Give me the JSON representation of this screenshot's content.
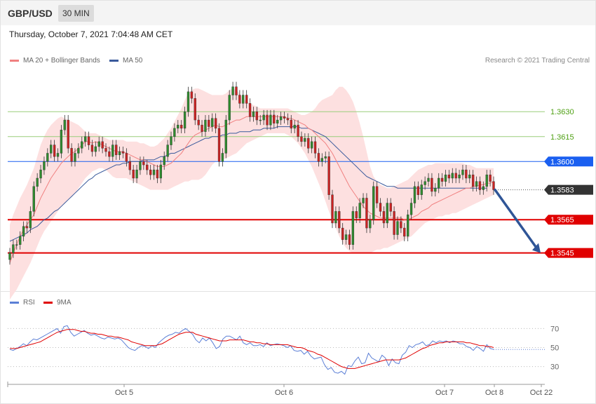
{
  "header": {
    "symbol": "GBP/USD",
    "interval": "30 MIN"
  },
  "timestamp": "Thursday, October 7, 2021 7:04:48 AM CET",
  "legend": {
    "ma20_bb": {
      "label": "MA 20 + Bollinger Bands",
      "color": "#f08080"
    },
    "ma50": {
      "label": "MA 50",
      "color": "#3a5a9c"
    }
  },
  "copyright": "Research © 2021 Trading Central",
  "rsi_legend": {
    "rsi": {
      "label": "RSI",
      "color": "#5b7fd6"
    },
    "ma9": {
      "label": "9MA",
      "color": "#e00000"
    }
  },
  "colors": {
    "up": "#2e8b2e",
    "down": "#cc2222",
    "bands": "#fde0e0",
    "ma20": "#f08080",
    "ma50": "#3a5a9c"
  },
  "chart_data": [
    {
      "type": "candlestick",
      "title": "",
      "ylim": [
        1.3525,
        1.3655
      ],
      "levels": [
        {
          "value": 1.363,
          "label": "1.3630",
          "kind": "target",
          "color": "#9acd7a"
        },
        {
          "value": 1.3615,
          "label": "1.3615",
          "kind": "target",
          "color": "#9acd7a"
        },
        {
          "value": 1.36,
          "label": "1.3600",
          "kind": "pivot",
          "color": "#1a5ff0"
        },
        {
          "value": 1.3583,
          "label": "1.3583",
          "kind": "last",
          "color": "#333333"
        },
        {
          "value": 1.3565,
          "label": "1.3565",
          "kind": "support",
          "color": "#e00000"
        },
        {
          "value": 1.3545,
          "label": "1.3545",
          "kind": "support",
          "color": "#e00000"
        }
      ],
      "forecast_arrow": {
        "from": 1.3583,
        "to": 1.3545,
        "color": "#2f5597"
      },
      "close": [
        1.3545,
        1.355,
        1.355,
        1.3555,
        1.3561,
        1.356,
        1.357,
        1.3585,
        1.359,
        1.3595,
        1.36,
        1.3605,
        1.361,
        1.3603,
        1.3605,
        1.3619,
        1.3625,
        1.3608,
        1.36,
        1.3605,
        1.3608,
        1.3612,
        1.3615,
        1.361,
        1.3606,
        1.3609,
        1.3612,
        1.3608,
        1.3606,
        1.3603,
        1.361,
        1.3604,
        1.3606,
        1.3605,
        1.36,
        1.3595,
        1.359,
        1.3595,
        1.36,
        1.3598,
        1.3595,
        1.3592,
        1.3595,
        1.359,
        1.3598,
        1.3603,
        1.361,
        1.3615,
        1.362,
        1.3622,
        1.362,
        1.363,
        1.3642,
        1.3638,
        1.3625,
        1.3622,
        1.3618,
        1.3625,
        1.3621,
        1.3626,
        1.362,
        1.36,
        1.3605,
        1.3625,
        1.364,
        1.3645,
        1.364,
        1.3635,
        1.364,
        1.3635,
        1.3627,
        1.363,
        1.3625,
        1.3625,
        1.3628,
        1.3622,
        1.3628,
        1.3623,
        1.3625,
        1.3627,
        1.3626,
        1.3625,
        1.362,
        1.3622,
        1.3615,
        1.3612,
        1.3614,
        1.3608,
        1.3612,
        1.3605,
        1.36,
        1.3602,
        1.3603,
        1.358,
        1.3563,
        1.357,
        1.356,
        1.3553,
        1.3556,
        1.355,
        1.357,
        1.3566,
        1.3575,
        1.3578,
        1.356,
        1.3565,
        1.3585,
        1.3575,
        1.357,
        1.3563,
        1.3575,
        1.357,
        1.3556,
        1.3564,
        1.356,
        1.3555,
        1.3568,
        1.3575,
        1.3585,
        1.358,
        1.3586,
        1.3588,
        1.359,
        1.3582,
        1.3584,
        1.359,
        1.3588,
        1.3592,
        1.359,
        1.3593,
        1.359,
        1.3592,
        1.3595,
        1.359,
        1.3592,
        1.3585,
        1.3588,
        1.3583,
        1.3585,
        1.3592,
        1.3588,
        1.3583
      ],
      "ma20": [
        1.3539,
        1.3545,
        1.355,
        1.3555,
        1.3559,
        1.3562,
        1.3565,
        1.3568,
        1.3573,
        1.3578,
        1.3582,
        1.3586,
        1.359,
        1.3593,
        1.3596,
        1.3599,
        1.3601,
        1.3603,
        1.3605,
        1.3606,
        1.3608,
        1.361,
        1.3612,
        1.3612,
        1.3611,
        1.3612,
        1.3611,
        1.361,
        1.3609,
        1.3608,
        1.3607,
        1.3606,
        1.3606,
        1.3606,
        1.3605,
        1.3604,
        1.3603,
        1.3602,
        1.3601,
        1.3601,
        1.36,
        1.3599,
        1.3598,
        1.3597,
        1.3597,
        1.3597,
        1.3598,
        1.3599,
        1.3601,
        1.3603,
        1.3605,
        1.3608,
        1.3611,
        1.3614,
        1.3616,
        1.3617,
        1.3618,
        1.3619,
        1.362,
        1.3621,
        1.3622,
        1.3621,
        1.3621,
        1.3622,
        1.3623,
        1.3624,
        1.3625,
        1.3625,
        1.3626,
        1.3627,
        1.3627,
        1.3627,
        1.3627,
        1.3627,
        1.3627,
        1.3627,
        1.3627,
        1.3627,
        1.3627,
        1.3627,
        1.3627,
        1.3626,
        1.3626,
        1.3625,
        1.3624,
        1.3623,
        1.3622,
        1.362,
        1.3619,
        1.3617,
        1.3615,
        1.3613,
        1.3611,
        1.3608,
        1.3605,
        1.3601,
        1.3597,
        1.3593,
        1.3589,
        1.3585,
        1.3582,
        1.3579,
        1.3576,
        1.3573,
        1.3571,
        1.3569,
        1.3568,
        1.3567,
        1.3566,
        1.3566,
        1.3566,
        1.3566,
        1.3566,
        1.3566,
        1.3566,
        1.3565,
        1.3565,
        1.3566,
        1.3567,
        1.3568,
        1.357,
        1.3571,
        1.3572,
        1.3574,
        1.3575,
        1.3576,
        1.3577,
        1.3578,
        1.3579,
        1.358,
        1.3581,
        1.3582,
        1.3583,
        1.3584,
        1.3584,
        1.3585,
        1.3585,
        1.3586,
        1.3586,
        1.3587,
        1.3587,
        1.3588
      ],
      "bb_upper": [
        1.3562,
        1.3568,
        1.3573,
        1.3578,
        1.3582,
        1.3586,
        1.3591,
        1.3596,
        1.3603,
        1.361,
        1.3615,
        1.3619,
        1.3622,
        1.3624,
        1.3626,
        1.3627,
        1.3626,
        1.3625,
        1.3624,
        1.3623,
        1.3622,
        1.362,
        1.3618,
        1.3617,
        1.3617,
        1.3617,
        1.3616,
        1.3615,
        1.3614,
        1.3613,
        1.3613,
        1.3613,
        1.3613,
        1.3613,
        1.3612,
        1.3612,
        1.3612,
        1.3612,
        1.3611,
        1.3611,
        1.361,
        1.3609,
        1.3609,
        1.361,
        1.3612,
        1.3614,
        1.3617,
        1.362,
        1.3624,
        1.3628,
        1.3632,
        1.3637,
        1.3641,
        1.3643,
        1.3644,
        1.3644,
        1.3643,
        1.3642,
        1.3641,
        1.364,
        1.364,
        1.364,
        1.364,
        1.3641,
        1.3643,
        1.3644,
        1.3643,
        1.3641,
        1.3638,
        1.3636,
        1.3635,
        1.3634,
        1.3633,
        1.3632,
        1.3632,
        1.3632,
        1.3632,
        1.3632,
        1.3632,
        1.3632,
        1.3632,
        1.3632,
        1.3631,
        1.363,
        1.3629,
        1.3628,
        1.3628,
        1.3629,
        1.363,
        1.3632,
        1.3635,
        1.3637,
        1.3638,
        1.3639,
        1.364,
        1.3643,
        1.3645,
        1.3645,
        1.3643,
        1.364,
        1.3636,
        1.363,
        1.3623,
        1.3615,
        1.3606,
        1.3597,
        1.3591,
        1.3588,
        1.3586,
        1.3585,
        1.3584,
        1.3584,
        1.3585,
        1.3586,
        1.3587,
        1.3588,
        1.3589,
        1.3591,
        1.3593,
        1.3595,
        1.3596,
        1.3597,
        1.3598,
        1.3598,
        1.3599,
        1.3599,
        1.3599,
        1.3599,
        1.3599,
        1.3599,
        1.3599,
        1.3599,
        1.3599,
        1.3598,
        1.3598,
        1.3597,
        1.3596,
        1.3596,
        1.3596,
        1.3596,
        1.3596,
        1.3596
      ],
      "bb_lower": [
        1.3517,
        1.352,
        1.3523,
        1.3527,
        1.3531,
        1.3535,
        1.3539,
        1.3544,
        1.3549,
        1.3554,
        1.3558,
        1.3561,
        1.3564,
        1.3567,
        1.357,
        1.3573,
        1.3575,
        1.3577,
        1.3579,
        1.3581,
        1.3584,
        1.3587,
        1.359,
        1.3592,
        1.3594,
        1.3595,
        1.3596,
        1.3596,
        1.3595,
        1.3593,
        1.3591,
        1.359,
        1.359,
        1.359,
        1.359,
        1.3589,
        1.3588,
        1.3587,
        1.3586,
        1.3585,
        1.3584,
        1.3583,
        1.3583,
        1.3583,
        1.3583,
        1.3583,
        1.3583,
        1.3584,
        1.3585,
        1.3586,
        1.3587,
        1.3588,
        1.3588,
        1.3589,
        1.3589,
        1.3589,
        1.359,
        1.3592,
        1.3595,
        1.3598,
        1.36,
        1.3601,
        1.3601,
        1.3602,
        1.3603,
        1.3604,
        1.3605,
        1.3607,
        1.3609,
        1.3611,
        1.3612,
        1.3613,
        1.3614,
        1.3615,
        1.3616,
        1.3617,
        1.3617,
        1.3617,
        1.3617,
        1.3617,
        1.3617,
        1.3616,
        1.3615,
        1.3613,
        1.3611,
        1.3608,
        1.3605,
        1.3601,
        1.3597,
        1.3592,
        1.3587,
        1.3582,
        1.3576,
        1.357,
        1.3565,
        1.356,
        1.3555,
        1.3551,
        1.3548,
        1.3546,
        1.3545,
        1.3545,
        1.3545,
        1.3545,
        1.3545,
        1.3545,
        1.3546,
        1.3547,
        1.3547,
        1.3548,
        1.3548,
        1.3549,
        1.355,
        1.3551,
        1.3552,
        1.3553,
        1.3554,
        1.3555,
        1.3557,
        1.3559,
        1.3561,
        1.3563,
        1.3564,
        1.3565,
        1.3566,
        1.3567,
        1.3567,
        1.3568,
        1.3568,
        1.3569,
        1.3569,
        1.357,
        1.3571,
        1.3572,
        1.3573,
        1.3574,
        1.3575,
        1.3576,
        1.3577,
        1.3578,
        1.3579,
        1.358
      ],
      "ma50": [
        1.3552,
        1.3553,
        1.3554,
        1.3555,
        1.3556,
        1.3557,
        1.3559,
        1.356,
        1.3561,
        1.3563,
        1.3565,
        1.3566,
        1.3568,
        1.357,
        1.3571,
        1.3573,
        1.3575,
        1.3577,
        1.3579,
        1.3581,
        1.3583,
        1.3585,
        1.3587,
        1.3589,
        1.359,
        1.3592,
        1.3593,
        1.3594,
        1.3595,
        1.3596,
        1.3597,
        1.3598,
        1.3598,
        1.3599,
        1.3599,
        1.36,
        1.36,
        1.36,
        1.36,
        1.3601,
        1.3601,
        1.3601,
        1.3601,
        1.3602,
        1.3603,
        1.3603,
        1.3604,
        1.3605,
        1.3605,
        1.3606,
        1.3607,
        1.3608,
        1.3609,
        1.361,
        1.3611,
        1.3612,
        1.3613,
        1.3614,
        1.3614,
        1.3615,
        1.3615,
        1.3615,
        1.3616,
        1.3616,
        1.3617,
        1.3617,
        1.3617,
        1.3618,
        1.3618,
        1.3618,
        1.3618,
        1.3619,
        1.3619,
        1.3619,
        1.362,
        1.362,
        1.362,
        1.362,
        1.3621,
        1.3621,
        1.3621,
        1.3621,
        1.3621,
        1.3621,
        1.3621,
        1.362,
        1.362,
        1.362,
        1.3619,
        1.3618,
        1.3617,
        1.3616,
        1.3615,
        1.3613,
        1.3611,
        1.3609,
        1.3607,
        1.3605,
        1.3603,
        1.3601,
        1.3599,
        1.3597,
        1.3595,
        1.3593,
        1.3591,
        1.359,
        1.3589,
        1.3588,
        1.3587,
        1.3586,
        1.3585,
        1.3585,
        1.3585,
        1.3584,
        1.3584,
        1.3584,
        1.3584,
        1.3584,
        1.3584,
        1.3584,
        1.3584,
        1.3584,
        1.3584,
        1.3584,
        1.3584,
        1.3584,
        1.3584,
        1.3584,
        1.3584,
        1.3584,
        1.3584,
        1.3584,
        1.3584,
        1.3584,
        1.3584,
        1.3584,
        1.3584,
        1.3584,
        1.3584,
        1.3584
      ]
    },
    {
      "type": "line",
      "title": "",
      "ylim": [
        15,
        85
      ],
      "yticks": [
        "70",
        "50",
        "30"
      ],
      "ytick_values": [
        70,
        50,
        30
      ],
      "series": [
        {
          "name": "RSI",
          "values": [
            48,
            47,
            49,
            51,
            54,
            52,
            56,
            59,
            58,
            60,
            62,
            64,
            66,
            68,
            70,
            65,
            72,
            73,
            66,
            62,
            64,
            66,
            68,
            65,
            63,
            64,
            62,
            60,
            59,
            61,
            60,
            59,
            60,
            58,
            54,
            50,
            48,
            47,
            50,
            52,
            51,
            49,
            52,
            50,
            55,
            58,
            61,
            63,
            64,
            66,
            65,
            68,
            70,
            67,
            64,
            58,
            55,
            60,
            57,
            60,
            55,
            49,
            51,
            59,
            62,
            62,
            60,
            58,
            62,
            55,
            53,
            55,
            52,
            52,
            53,
            51,
            55,
            52,
            53,
            54,
            53,
            52,
            50,
            52,
            47,
            46,
            47,
            43,
            46,
            41,
            38,
            39,
            40,
            32,
            27,
            29,
            24,
            23,
            25,
            22,
            31,
            30,
            36,
            40,
            33,
            34,
            44,
            39,
            37,
            35,
            42,
            39,
            31,
            38,
            34,
            33,
            42,
            45,
            52,
            50,
            53,
            54,
            56,
            52,
            53,
            57,
            55,
            57,
            56,
            57,
            55,
            57,
            56,
            54,
            54,
            51,
            50,
            47,
            51,
            49,
            46,
            53,
            49,
            48
          ]
        },
        {
          "name": "9MA",
          "values": [
            49,
            49,
            49,
            50,
            51,
            52,
            53,
            54,
            55,
            56,
            58,
            60,
            62,
            64,
            66,
            67,
            68,
            69,
            69,
            69,
            68,
            67,
            67,
            66,
            65,
            65,
            64,
            64,
            63,
            62,
            62,
            61,
            61,
            60,
            59,
            58,
            56,
            55,
            54,
            53,
            52,
            52,
            52,
            52,
            53,
            54,
            56,
            58,
            60,
            62,
            64,
            65,
            66,
            66,
            66,
            64,
            63,
            62,
            61,
            60,
            59,
            58,
            57,
            57,
            57,
            58,
            58,
            58,
            58,
            58,
            57,
            56,
            56,
            55,
            55,
            54,
            54,
            53,
            53,
            53,
            53,
            53,
            53,
            52,
            51,
            50,
            50,
            49,
            47,
            46,
            45,
            43,
            42,
            40,
            38,
            36,
            34,
            32,
            30,
            29,
            28,
            28,
            28,
            29,
            30,
            31,
            32,
            33,
            34,
            35,
            36,
            37,
            37,
            37,
            37,
            37,
            38,
            39,
            41,
            43,
            45,
            47,
            49,
            50,
            52,
            53,
            54,
            55,
            55,
            56,
            56,
            56,
            56,
            56,
            56,
            55,
            55,
            54,
            53,
            52,
            52,
            51,
            51,
            50
          ]
        }
      ]
    }
  ],
  "x_axis": {
    "ticks": [
      "Oct 5",
      "Oct 6",
      "Oct 7",
      "Oct 8",
      "Oct 22"
    ]
  }
}
